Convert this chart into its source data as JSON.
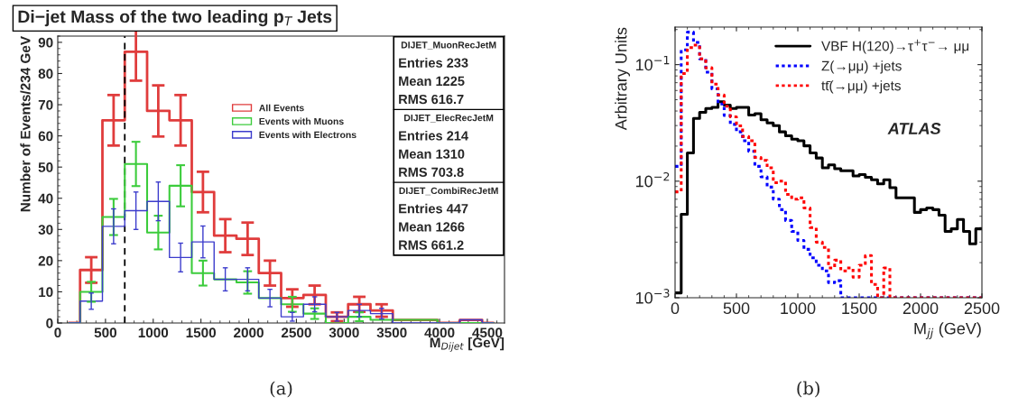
{
  "chart_data": [
    {
      "type": "step",
      "title": "Di−jet Mass of the two leading p$_{T}$ Jets",
      "xlabel": "M$_{Dijet}$ [GeV]",
      "ylabel": "Number of Events/234 GeV",
      "x": [
        117,
        351,
        585,
        819,
        1053,
        1287,
        1521,
        1755,
        1989,
        2223,
        2457,
        2691,
        2925,
        3159,
        3393,
        3627,
        3861,
        4095,
        4329,
        4563
      ],
      "series": [
        {
          "name": "All Events",
          "color": "#e03c3c",
          "values": [
            0,
            17,
            65,
            87,
            68,
            65,
            42,
            28,
            27,
            16,
            8,
            9,
            2,
            6,
            4,
            1,
            1,
            0,
            1,
            0
          ],
          "errors": [
            null,
            4.1,
            8.1,
            9.3,
            8.2,
            8.1,
            6.5,
            5.3,
            5.2,
            4,
            2.8,
            3,
            1.4,
            2.4,
            2,
            null,
            null,
            null,
            null,
            null
          ]
        },
        {
          "name": "Events with Muons",
          "color": "#3ccc3c",
          "values": [
            0,
            10,
            34,
            51,
            29,
            44,
            16,
            14,
            13,
            8,
            6,
            3,
            0,
            2,
            1,
            1,
            1,
            0,
            0,
            0
          ],
          "errors": [
            null,
            3.2,
            5.8,
            7.1,
            5.4,
            6.6,
            4,
            null,
            3.6,
            null,
            2.4,
            1.7,
            null,
            1.4,
            null,
            null,
            null,
            null,
            null,
            null
          ]
        },
        {
          "name": "Events with Electrons",
          "color": "#3c3ccc",
          "values": [
            0,
            7,
            31,
            36,
            39,
            21,
            26,
            14,
            14,
            8,
            2,
            6,
            2,
            4,
            3,
            0,
            0,
            0,
            1,
            0
          ],
          "errors": [
            null,
            2.6,
            5.6,
            6,
            6.2,
            4.6,
            5.1,
            3.7,
            3.7,
            2.8,
            1.4,
            2.4,
            1.4,
            2,
            1.7,
            null,
            null,
            null,
            null,
            null
          ]
        }
      ],
      "xlim": [
        0,
        4680
      ],
      "ylim": [
        0,
        92
      ],
      "xticks": [
        0,
        500,
        1000,
        1500,
        2000,
        2500,
        3000,
        3500,
        4000,
        4500
      ],
      "yticks": [
        0,
        10,
        20,
        30,
        40,
        50,
        60,
        70,
        80,
        90
      ],
      "ref_lines": [
        {
          "axis": "x",
          "value": 702,
          "color": "#000000",
          "line_style": "dashed"
        }
      ],
      "legend": "center",
      "grid": false,
      "annotations": [
        "DIJET_MuonRecJetM",
        "Entries 233",
        "Mean 1225",
        "RMS 616.7",
        "DIJET_ElecRecJetM",
        "Entries 214",
        "Mean 1310",
        "RMS 703.8",
        "DIJET_CombiRecJetM",
        "Entries 447",
        "Mean 1266",
        "RMS 661.2",
        "(a)"
      ]
    },
    {
      "type": "histogram",
      "xlabel": "M$_{jj}$ (GeV)",
      "ylabel": "Arbitrary Units",
      "log": "y",
      "bins": [
        0,
        50,
        100,
        150,
        200,
        250,
        300,
        350,
        400,
        450,
        500,
        550,
        600,
        650,
        700,
        750,
        800,
        850,
        900,
        950,
        1000,
        1050,
        1100,
        1150,
        1200,
        1250,
        1300,
        1350,
        1400,
        1450,
        1500,
        1550,
        1600,
        1650,
        1700,
        1750,
        1800,
        1850,
        1900,
        1950,
        2000,
        2050,
        2100,
        2150,
        2200,
        2250,
        2300,
        2350,
        2400,
        2450,
        2500
      ],
      "series": [
        {
          "name": "VBF H(120)→τ$^{+}$τ$^{−}$→ μμ",
          "color": "#000000",
          "line_style": "solid",
          "values": [
            0.0011,
            0.0052,
            0.0175,
            0.0345,
            0.039,
            0.042,
            0.043,
            0.048,
            0.045,
            0.042,
            0.043,
            0.043,
            0.037,
            0.038,
            0.0336,
            0.0316,
            0.03,
            0.0265,
            0.0245,
            0.0229,
            0.0222,
            0.0201,
            0.0175,
            0.0158,
            0.013,
            0.0138,
            0.0128,
            0.0123,
            0.0123,
            0.0111,
            0.0114,
            0.0108,
            0.0103,
            0.0095,
            0.0103,
            0.0088,
            0.0072,
            0.0072,
            0.0072,
            0.0054,
            0.0057,
            0.0059,
            0.0057,
            0.0051,
            0.0037,
            0.0039,
            0.0047,
            0.0037,
            0.0029,
            0.0039
          ]
        },
        {
          "name": "Z(→μμ) +jets",
          "color": "#0000ff",
          "line_style": "dotted",
          "values": [
            0.0134,
            0.134,
            0.19,
            0.155,
            0.112,
            0.086,
            0.062,
            0.046,
            0.0366,
            0.0307,
            0.0265,
            0.0222,
            0.018,
            0.0134,
            0.0109,
            0.0089,
            0.007,
            0.0057,
            0.0046,
            0.0037,
            0.0031,
            0.0026,
            0.0022,
            0.0019,
            0.0017,
            0.00135,
            0.0014,
            0.001,
            0.001,
            0.001,
            0.001,
            0.001,
            0.001,
            0.001,
            0.001,
            0.001,
            0.001,
            0.001,
            0.001,
            0.001,
            0.001,
            0.001,
            0.001,
            0.001,
            0.001,
            0.001,
            0.001,
            0.001,
            0.001,
            0.001
          ]
        },
        {
          "name": "tt̄(→μμ) +jets",
          "color": "#ff0000",
          "line_style": "dotted",
          "values": [
            0.0081,
            0.084,
            0.14,
            0.147,
            0.112,
            0.094,
            0.068,
            0.055,
            0.044,
            0.0356,
            0.0298,
            0.0242,
            0.0222,
            0.016,
            0.0151,
            0.013,
            0.0097,
            0.01,
            0.0077,
            0.007,
            0.0072,
            0.0059,
            0.004,
            0.003,
            0.0027,
            0.0018,
            0.0021,
            0.0017,
            0.0018,
            0.0015,
            0.0019,
            0.0023,
            0.0013,
            0.001,
            0.0018,
            0.001,
            0.001,
            0.001,
            0.001,
            0.001,
            0.001,
            0.001,
            0.001,
            0.001,
            0.001,
            0.001,
            0.001,
            0.001,
            0.001,
            0.001
          ]
        }
      ],
      "xlim": [
        0,
        2500
      ],
      "ylim": [
        0.001,
        0.21
      ],
      "xticks": [
        0,
        500,
        1000,
        1500,
        2000,
        2500
      ],
      "yticks": [
        {
          "value": 0.001,
          "label": "10$^{−3}$"
        },
        {
          "value": 0.01,
          "label": "10$^{−2}$"
        },
        {
          "value": 0.1,
          "label": "10$^{−1}$"
        }
      ],
      "legend": "top right",
      "grid": false,
      "annotations": [
        "ATLAS",
        "(b)"
      ]
    }
  ]
}
